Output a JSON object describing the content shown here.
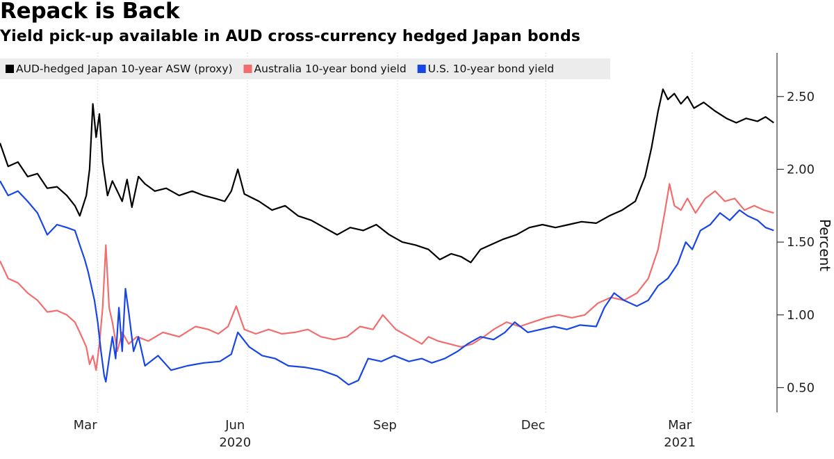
{
  "header": {
    "title": "Repack is Back",
    "subtitle": "Yield pick-up available in AUD cross-currency hedged Japan bonds"
  },
  "chart_data": {
    "type": "line",
    "title": "Repack is Back",
    "subtitle": "Yield pick-up available in AUD cross-currency hedged Japan bonds",
    "ylabel": "Percent",
    "xlabel": "",
    "ylim": [
      0.33,
      2.8
    ],
    "y_ticks": [
      0.5,
      1.0,
      1.5,
      2.0,
      2.5
    ],
    "y_tick_labels": [
      "0.50",
      "1.00",
      "1.50",
      "2.00",
      "2.50"
    ],
    "xlim": [
      "2020-01-01",
      "2021-04-22"
    ],
    "x_ticks": [
      {
        "date": "2020-03-01",
        "label": "Mar",
        "year": ""
      },
      {
        "date": "2020-06-01",
        "label": "Jun",
        "year": "2020"
      },
      {
        "date": "2020-09-01",
        "label": "Sep",
        "year": ""
      },
      {
        "date": "2020-12-01",
        "label": "Dec",
        "year": ""
      },
      {
        "date": "2021-03-01",
        "label": "Mar",
        "year": "2021"
      }
    ],
    "y_axis_side": "right",
    "grid": "vertical-dotted",
    "legend_position": "top-left",
    "series": [
      {
        "name": "AUD-hedged Japan 10-year ASW (proxy)",
        "color": "#000000",
        "points": [
          [
            "2020-01-01",
            2.18
          ],
          [
            "2020-01-06",
            2.02
          ],
          [
            "2020-01-12",
            2.05
          ],
          [
            "2020-01-18",
            1.95
          ],
          [
            "2020-01-24",
            1.97
          ],
          [
            "2020-01-30",
            1.87
          ],
          [
            "2020-02-05",
            1.88
          ],
          [
            "2020-02-11",
            1.82
          ],
          [
            "2020-02-16",
            1.75
          ],
          [
            "2020-02-19",
            1.68
          ],
          [
            "2020-02-23",
            1.82
          ],
          [
            "2020-02-25",
            2.0
          ],
          [
            "2020-02-27",
            2.45
          ],
          [
            "2020-02-29",
            2.22
          ],
          [
            "2020-03-02",
            2.38
          ],
          [
            "2020-03-04",
            2.05
          ],
          [
            "2020-03-07",
            1.82
          ],
          [
            "2020-03-10",
            1.92
          ],
          [
            "2020-03-13",
            1.85
          ],
          [
            "2020-03-16",
            1.78
          ],
          [
            "2020-03-19",
            1.93
          ],
          [
            "2020-03-22",
            1.74
          ],
          [
            "2020-03-26",
            1.95
          ],
          [
            "2020-03-30",
            1.9
          ],
          [
            "2020-04-05",
            1.85
          ],
          [
            "2020-04-12",
            1.87
          ],
          [
            "2020-04-20",
            1.82
          ],
          [
            "2020-04-28",
            1.85
          ],
          [
            "2020-05-05",
            1.82
          ],
          [
            "2020-05-12",
            1.8
          ],
          [
            "2020-05-18",
            1.78
          ],
          [
            "2020-05-22",
            1.85
          ],
          [
            "2020-05-26",
            2.0
          ],
          [
            "2020-05-30",
            1.83
          ],
          [
            "2020-06-08",
            1.78
          ],
          [
            "2020-06-16",
            1.72
          ],
          [
            "2020-06-24",
            1.75
          ],
          [
            "2020-07-02",
            1.68
          ],
          [
            "2020-07-10",
            1.65
          ],
          [
            "2020-07-18",
            1.6
          ],
          [
            "2020-07-26",
            1.55
          ],
          [
            "2020-08-03",
            1.6
          ],
          [
            "2020-08-11",
            1.58
          ],
          [
            "2020-08-19",
            1.62
          ],
          [
            "2020-08-27",
            1.55
          ],
          [
            "2020-09-04",
            1.5
          ],
          [
            "2020-09-12",
            1.48
          ],
          [
            "2020-09-20",
            1.45
          ],
          [
            "2020-09-27",
            1.38
          ],
          [
            "2020-10-04",
            1.42
          ],
          [
            "2020-10-10",
            1.4
          ],
          [
            "2020-10-16",
            1.36
          ],
          [
            "2020-10-22",
            1.45
          ],
          [
            "2020-10-28",
            1.48
          ],
          [
            "2020-11-05",
            1.52
          ],
          [
            "2020-11-13",
            1.55
          ],
          [
            "2020-11-21",
            1.6
          ],
          [
            "2020-11-29",
            1.62
          ],
          [
            "2020-12-07",
            1.6
          ],
          [
            "2020-12-15",
            1.62
          ],
          [
            "2020-12-23",
            1.64
          ],
          [
            "2021-01-01",
            1.63
          ],
          [
            "2021-01-09",
            1.68
          ],
          [
            "2021-01-17",
            1.72
          ],
          [
            "2021-01-25",
            1.78
          ],
          [
            "2021-01-31",
            1.95
          ],
          [
            "2021-02-04",
            2.15
          ],
          [
            "2021-02-08",
            2.4
          ],
          [
            "2021-02-11",
            2.55
          ],
          [
            "2021-02-14",
            2.48
          ],
          [
            "2021-02-18",
            2.52
          ],
          [
            "2021-02-22",
            2.45
          ],
          [
            "2021-02-26",
            2.5
          ],
          [
            "2021-03-02",
            2.42
          ],
          [
            "2021-03-08",
            2.46
          ],
          [
            "2021-03-15",
            2.4
          ],
          [
            "2021-03-22",
            2.35
          ],
          [
            "2021-03-28",
            2.32
          ],
          [
            "2021-04-03",
            2.35
          ],
          [
            "2021-04-10",
            2.33
          ],
          [
            "2021-04-15",
            2.36
          ],
          [
            "2021-04-20",
            2.32
          ]
        ]
      },
      {
        "name": "Australia 10-year bond yield",
        "color": "#f26d6d",
        "points": [
          [
            "2020-01-01",
            1.37
          ],
          [
            "2020-01-06",
            1.25
          ],
          [
            "2020-01-12",
            1.22
          ],
          [
            "2020-01-18",
            1.15
          ],
          [
            "2020-01-24",
            1.1
          ],
          [
            "2020-01-30",
            1.02
          ],
          [
            "2020-02-05",
            1.03
          ],
          [
            "2020-02-11",
            1.0
          ],
          [
            "2020-02-16",
            0.95
          ],
          [
            "2020-02-19",
            0.88
          ],
          [
            "2020-02-23",
            0.78
          ],
          [
            "2020-02-25",
            0.66
          ],
          [
            "2020-02-27",
            0.72
          ],
          [
            "2020-02-29",
            0.62
          ],
          [
            "2020-03-02",
            0.8
          ],
          [
            "2020-03-04",
            1.05
          ],
          [
            "2020-03-06",
            1.48
          ],
          [
            "2020-03-08",
            1.05
          ],
          [
            "2020-03-10",
            0.95
          ],
          [
            "2020-03-13",
            0.75
          ],
          [
            "2020-03-16",
            0.88
          ],
          [
            "2020-03-20",
            0.8
          ],
          [
            "2020-03-25",
            0.85
          ],
          [
            "2020-04-01",
            0.82
          ],
          [
            "2020-04-10",
            0.88
          ],
          [
            "2020-04-20",
            0.85
          ],
          [
            "2020-04-30",
            0.92
          ],
          [
            "2020-05-08",
            0.9
          ],
          [
            "2020-05-14",
            0.87
          ],
          [
            "2020-05-20",
            0.92
          ],
          [
            "2020-05-25",
            1.06
          ],
          [
            "2020-05-30",
            0.9
          ],
          [
            "2020-06-06",
            0.87
          ],
          [
            "2020-06-14",
            0.9
          ],
          [
            "2020-06-22",
            0.87
          ],
          [
            "2020-06-30",
            0.88
          ],
          [
            "2020-07-08",
            0.9
          ],
          [
            "2020-07-16",
            0.85
          ],
          [
            "2020-07-24",
            0.83
          ],
          [
            "2020-08-01",
            0.85
          ],
          [
            "2020-08-09",
            0.92
          ],
          [
            "2020-08-17",
            0.9
          ],
          [
            "2020-08-23",
            1.0
          ],
          [
            "2020-08-31",
            0.9
          ],
          [
            "2020-09-08",
            0.85
          ],
          [
            "2020-09-16",
            0.8
          ],
          [
            "2020-09-20",
            0.85
          ],
          [
            "2020-09-26",
            0.82
          ],
          [
            "2020-10-03",
            0.8
          ],
          [
            "2020-10-10",
            0.78
          ],
          [
            "2020-10-17",
            0.8
          ],
          [
            "2020-10-24",
            0.85
          ],
          [
            "2020-10-30",
            0.9
          ],
          [
            "2020-11-07",
            0.95
          ],
          [
            "2020-11-15",
            0.92
          ],
          [
            "2020-11-23",
            0.95
          ],
          [
            "2020-12-01",
            0.98
          ],
          [
            "2020-12-09",
            1.0
          ],
          [
            "2020-12-17",
            0.98
          ],
          [
            "2020-12-25",
            1.0
          ],
          [
            "2021-01-02",
            1.08
          ],
          [
            "2021-01-10",
            1.12
          ],
          [
            "2021-01-18",
            1.1
          ],
          [
            "2021-01-26",
            1.15
          ],
          [
            "2021-02-02",
            1.25
          ],
          [
            "2021-02-08",
            1.45
          ],
          [
            "2021-02-12",
            1.7
          ],
          [
            "2021-02-15",
            1.9
          ],
          [
            "2021-02-18",
            1.75
          ],
          [
            "2021-02-22",
            1.72
          ],
          [
            "2021-02-26",
            1.8
          ],
          [
            "2021-03-03",
            1.7
          ],
          [
            "2021-03-09",
            1.8
          ],
          [
            "2021-03-15",
            1.85
          ],
          [
            "2021-03-21",
            1.78
          ],
          [
            "2021-03-27",
            1.8
          ],
          [
            "2021-04-02",
            1.72
          ],
          [
            "2021-04-08",
            1.75
          ],
          [
            "2021-04-14",
            1.72
          ],
          [
            "2021-04-20",
            1.7
          ]
        ]
      },
      {
        "name": "U.S. 10-year bond yield",
        "color": "#1846e6",
        "points": [
          [
            "2020-01-01",
            1.92
          ],
          [
            "2020-01-06",
            1.82
          ],
          [
            "2020-01-12",
            1.85
          ],
          [
            "2020-01-18",
            1.78
          ],
          [
            "2020-01-24",
            1.7
          ],
          [
            "2020-01-30",
            1.55
          ],
          [
            "2020-02-05",
            1.62
          ],
          [
            "2020-02-11",
            1.6
          ],
          [
            "2020-02-16",
            1.58
          ],
          [
            "2020-02-19",
            1.48
          ],
          [
            "2020-02-22",
            1.38
          ],
          [
            "2020-02-24",
            1.3
          ],
          [
            "2020-02-26",
            1.2
          ],
          [
            "2020-02-28",
            1.1
          ],
          [
            "2020-03-01",
            0.95
          ],
          [
            "2020-03-03",
            0.75
          ],
          [
            "2020-03-05",
            0.58
          ],
          [
            "2020-03-06",
            0.54
          ],
          [
            "2020-03-08",
            0.7
          ],
          [
            "2020-03-10",
            0.85
          ],
          [
            "2020-03-12",
            0.7
          ],
          [
            "2020-03-14",
            1.05
          ],
          [
            "2020-03-16",
            0.75
          ],
          [
            "2020-03-18",
            1.18
          ],
          [
            "2020-03-20",
            1.02
          ],
          [
            "2020-03-23",
            0.75
          ],
          [
            "2020-03-26",
            0.85
          ],
          [
            "2020-03-30",
            0.65
          ],
          [
            "2020-04-07",
            0.72
          ],
          [
            "2020-04-15",
            0.62
          ],
          [
            "2020-04-25",
            0.65
          ],
          [
            "2020-05-05",
            0.67
          ],
          [
            "2020-05-15",
            0.68
          ],
          [
            "2020-05-22",
            0.73
          ],
          [
            "2020-05-26",
            0.88
          ],
          [
            "2020-06-02",
            0.78
          ],
          [
            "2020-06-10",
            0.72
          ],
          [
            "2020-06-18",
            0.7
          ],
          [
            "2020-06-26",
            0.65
          ],
          [
            "2020-07-06",
            0.64
          ],
          [
            "2020-07-16",
            0.62
          ],
          [
            "2020-07-26",
            0.58
          ],
          [
            "2020-08-02",
            0.52
          ],
          [
            "2020-08-08",
            0.55
          ],
          [
            "2020-08-14",
            0.7
          ],
          [
            "2020-08-22",
            0.68
          ],
          [
            "2020-08-30",
            0.72
          ],
          [
            "2020-09-08",
            0.68
          ],
          [
            "2020-09-16",
            0.7
          ],
          [
            "2020-09-22",
            0.67
          ],
          [
            "2020-09-30",
            0.7
          ],
          [
            "2020-10-08",
            0.75
          ],
          [
            "2020-10-14",
            0.8
          ],
          [
            "2020-10-22",
            0.85
          ],
          [
            "2020-10-30",
            0.83
          ],
          [
            "2020-11-06",
            0.88
          ],
          [
            "2020-11-12",
            0.95
          ],
          [
            "2020-11-20",
            0.88
          ],
          [
            "2020-11-28",
            0.9
          ],
          [
            "2020-12-06",
            0.92
          ],
          [
            "2020-12-14",
            0.9
          ],
          [
            "2020-12-22",
            0.93
          ],
          [
            "2021-01-01",
            0.92
          ],
          [
            "2021-01-06",
            1.05
          ],
          [
            "2021-01-12",
            1.15
          ],
          [
            "2021-01-18",
            1.1
          ],
          [
            "2021-01-26",
            1.06
          ],
          [
            "2021-02-02",
            1.1
          ],
          [
            "2021-02-08",
            1.2
          ],
          [
            "2021-02-14",
            1.25
          ],
          [
            "2021-02-20",
            1.35
          ],
          [
            "2021-02-25",
            1.5
          ],
          [
            "2021-03-01",
            1.45
          ],
          [
            "2021-03-06",
            1.58
          ],
          [
            "2021-03-12",
            1.62
          ],
          [
            "2021-03-18",
            1.7
          ],
          [
            "2021-03-24",
            1.65
          ],
          [
            "2021-03-30",
            1.72
          ],
          [
            "2021-04-04",
            1.68
          ],
          [
            "2021-04-10",
            1.65
          ],
          [
            "2021-04-15",
            1.6
          ],
          [
            "2021-04-20",
            1.58
          ]
        ]
      }
    ]
  }
}
